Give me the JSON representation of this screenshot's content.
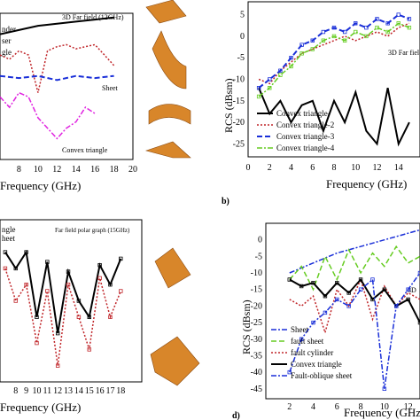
{
  "colors": {
    "black": "#000000",
    "red": "#c0262a",
    "blue": "#1a2fd8",
    "magenta": "#e024e0",
    "green": "#22bb22",
    "lime": "#66cc22",
    "orange": "#d8862a",
    "teal": "#1aa890"
  },
  "chart_data": [
    {
      "id": "a",
      "type": "line",
      "xlabel": "Frequency (GHz)",
      "x_ticks": [
        "8",
        "10",
        "12",
        "14",
        "16",
        "18",
        "20"
      ],
      "xlim": [
        6,
        20
      ],
      "ylim": [
        -60,
        10
      ],
      "legend_partial": [
        "nder",
        "ser",
        "gle"
      ],
      "annotations": [
        "3D Far field (12GHz)",
        "Sheet",
        "Convex triangle"
      ],
      "series": [
        {
          "x": [
            6,
            8,
            10,
            12,
            14,
            16,
            18
          ],
          "values": [
            0,
            2,
            4,
            5,
            6,
            7,
            8
          ]
        },
        {
          "x": [
            6,
            7,
            8,
            9,
            10,
            11,
            12,
            13,
            14,
            15,
            16,
            17,
            18
          ],
          "values": [
            -10,
            -12,
            -8,
            -10,
            -28,
            -8,
            -6,
            -5,
            -7,
            -6,
            -5,
            -10,
            -15
          ]
        },
        {
          "x": [
            6,
            8,
            10,
            12,
            14,
            16,
            18
          ],
          "values": [
            -20,
            -21,
            -20,
            -22,
            -20,
            -21,
            -20
          ]
        },
        {
          "x": [
            6,
            7,
            8,
            9,
            10,
            11,
            12,
            13,
            14,
            15,
            16
          ],
          "values": [
            -30,
            -35,
            -28,
            -30,
            -40,
            -45,
            -50,
            -45,
            -42,
            -35,
            -38
          ]
        }
      ]
    },
    {
      "id": "b",
      "type": "line",
      "panel_label": "b)",
      "xlabel": "Frequency (GHz)",
      "ylabel": "RCS (dBsm)",
      "x_ticks": [
        "0",
        "2",
        "4",
        "6",
        "8",
        "10",
        "12",
        "14"
      ],
      "y_ticks": [
        "5",
        "0",
        "-5",
        "-10",
        "-15",
        "-20",
        "-25"
      ],
      "xlim": [
        0,
        16
      ],
      "ylim": [
        -28,
        8
      ],
      "annotation": "3D Far field",
      "series": [
        {
          "name": "Convex triangle-",
          "x": [
            1,
            2,
            3,
            4,
            5,
            6,
            7,
            8,
            9,
            10,
            11,
            12,
            13,
            14,
            15
          ],
          "values": [
            -12,
            -18,
            -15,
            -20,
            -16,
            -15,
            -22,
            -15,
            -20,
            -13,
            -22,
            -25,
            -12,
            -25,
            -20
          ]
        },
        {
          "name": "Convex triangle-2",
          "x": [
            1,
            2,
            3,
            4,
            5,
            6,
            7,
            8,
            9,
            10,
            11,
            12,
            13,
            14,
            15
          ],
          "values": [
            -10,
            -11,
            -8,
            -6,
            -4,
            -3,
            -2,
            -1,
            0,
            -1,
            0,
            1,
            0,
            2,
            3
          ]
        },
        {
          "name": "Convex triangle-3",
          "x": [
            1,
            2,
            3,
            4,
            5,
            6,
            7,
            8,
            9,
            10,
            11,
            12,
            13,
            14,
            15
          ],
          "values": [
            -12,
            -10,
            -8,
            -5,
            -2,
            -1,
            1,
            2,
            1,
            3,
            2,
            4,
            3,
            5,
            4
          ]
        },
        {
          "name": "Convex triangle-4",
          "x": [
            1,
            2,
            3,
            4,
            5,
            6,
            7,
            8,
            9,
            10,
            11,
            12,
            13,
            14,
            15
          ],
          "values": [
            -14,
            -12,
            -9,
            -7,
            -4,
            -3,
            -1,
            0,
            -1,
            1,
            0,
            2,
            1,
            3,
            2
          ]
        }
      ]
    },
    {
      "id": "c",
      "type": "line",
      "xlabel": "Frequency (GHz)",
      "x_ticks": [
        "8",
        "9",
        "10",
        "11",
        "12",
        "13",
        "14",
        "15",
        "16",
        "17",
        "18"
      ],
      "xlim": [
        6.5,
        20
      ],
      "ylim": [
        -40,
        10
      ],
      "legend_partial": [
        "ngle",
        "heet"
      ],
      "annotation": "Far field polar graph (15GHz)",
      "series": [
        {
          "x": [
            7,
            8,
            9,
            10,
            11,
            12,
            13,
            14,
            15,
            16,
            17,
            18
          ],
          "values": [
            0,
            -5,
            0,
            -20,
            -3,
            -25,
            -6,
            -15,
            -20,
            -4,
            -10,
            -2
          ]
        },
        {
          "x": [
            7,
            8,
            9,
            10,
            11,
            12,
            13,
            14,
            15,
            16,
            17,
            18
          ],
          "values": [
            -5,
            -15,
            -10,
            -28,
            -12,
            -35,
            -10,
            -20,
            -30,
            -8,
            -20,
            -12
          ]
        }
      ]
    },
    {
      "id": "d",
      "type": "line",
      "panel_label": "d)",
      "xlabel": "Frequency (GHz)",
      "ylabel": "RCS (dBsm)",
      "x_ticks": [
        "2",
        "4",
        "6",
        "8",
        "10",
        "12"
      ],
      "y_ticks": [
        "0",
        "-5",
        "-10",
        "-15",
        "-20",
        "-25",
        "-30",
        "-35",
        "-40",
        "-45"
      ],
      "xlim": [
        0,
        13
      ],
      "ylim": [
        -48,
        5
      ],
      "annotation": "3D",
      "series": [
        {
          "name": "Sheet",
          "x": [
            2,
            4,
            6,
            8,
            10,
            12,
            13
          ],
          "values": [
            -10,
            -7,
            -4,
            -2,
            0,
            2,
            3
          ]
        },
        {
          "name": "fault sheet",
          "x": [
            2,
            3,
            4,
            5,
            6,
            7,
            8,
            9,
            10,
            11,
            12,
            13
          ],
          "values": [
            -12,
            -8,
            -15,
            -5,
            -12,
            -3,
            -10,
            -4,
            -8,
            -2,
            -7,
            -5
          ]
        },
        {
          "name": "fault cylinder",
          "x": [
            2,
            3,
            4,
            5,
            6,
            7,
            8,
            9,
            10,
            11,
            12,
            13
          ],
          "values": [
            -18,
            -20,
            -17,
            -28,
            -15,
            -20,
            -12,
            -24,
            -14,
            -20,
            -16,
            -18
          ]
        },
        {
          "name": "Convex triangle",
          "x": [
            2,
            3,
            4,
            5,
            6,
            7,
            8,
            9,
            10,
            11,
            12,
            13
          ],
          "values": [
            -12,
            -14,
            -13,
            -17,
            -13,
            -16,
            -12,
            -18,
            -15,
            -20,
            -18,
            -25
          ]
        },
        {
          "name": "Fault-oblique sheet",
          "x": [
            2,
            3,
            4,
            5,
            6,
            7,
            8,
            9,
            10,
            11,
            12,
            13
          ],
          "values": [
            -40,
            -30,
            -25,
            -22,
            -18,
            -20,
            -15,
            -12,
            -45,
            -20,
            -15,
            -10
          ]
        }
      ]
    }
  ]
}
